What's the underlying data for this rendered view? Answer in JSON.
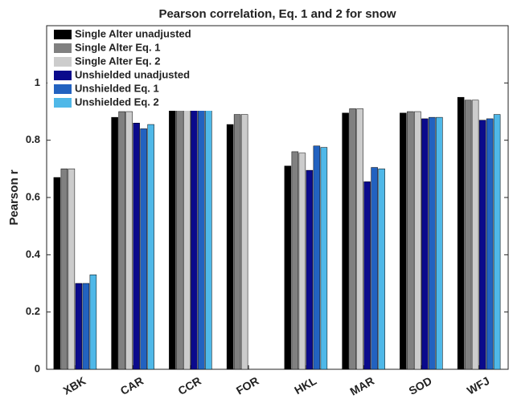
{
  "chart_data": {
    "type": "bar",
    "title": "Pearson correlation, Eq. 1 and 2 for snow",
    "ylabel": "Pearson r",
    "categories": [
      "XBK",
      "CAR",
      "CCR",
      "FOR",
      "HKL",
      "MAR",
      "SOD",
      "WFJ"
    ],
    "series": [
      {
        "name": "Single Alter unadjusted",
        "color": "#000000",
        "values": [
          0.67,
          0.88,
          0.935,
          0.855,
          0.71,
          0.895,
          0.895,
          0.95
        ]
      },
      {
        "name": "Single Alter Eq. 1",
        "color": "#808080",
        "values": [
          0.7,
          0.9,
          0.945,
          0.89,
          0.76,
          0.91,
          0.9,
          0.94
        ]
      },
      {
        "name": "Single Alter Eq. 2",
        "color": "#cccccc",
        "values": [
          0.7,
          0.9,
          0.945,
          0.89,
          0.755,
          0.91,
          0.9,
          0.94
        ]
      },
      {
        "name": "Unshielded unadjusted",
        "color": "#0a0a8c",
        "values": [
          0.3,
          0.86,
          0.91,
          null,
          0.695,
          0.655,
          0.875,
          0.87
        ]
      },
      {
        "name": "Unshielded Eq. 1",
        "color": "#2262c0",
        "values": [
          0.3,
          0.84,
          0.92,
          null,
          0.78,
          0.705,
          0.88,
          0.875
        ]
      },
      {
        "name": "Unshielded Eq. 2",
        "color": "#4fb8e8",
        "values": [
          0.33,
          0.855,
          0.925,
          null,
          0.775,
          0.7,
          0.88,
          0.89
        ]
      }
    ],
    "ylim": [
      0,
      1.2
    ],
    "yticks": [
      0,
      0.2,
      0.4,
      0.6,
      0.8,
      1
    ],
    "legend": "upper left"
  }
}
